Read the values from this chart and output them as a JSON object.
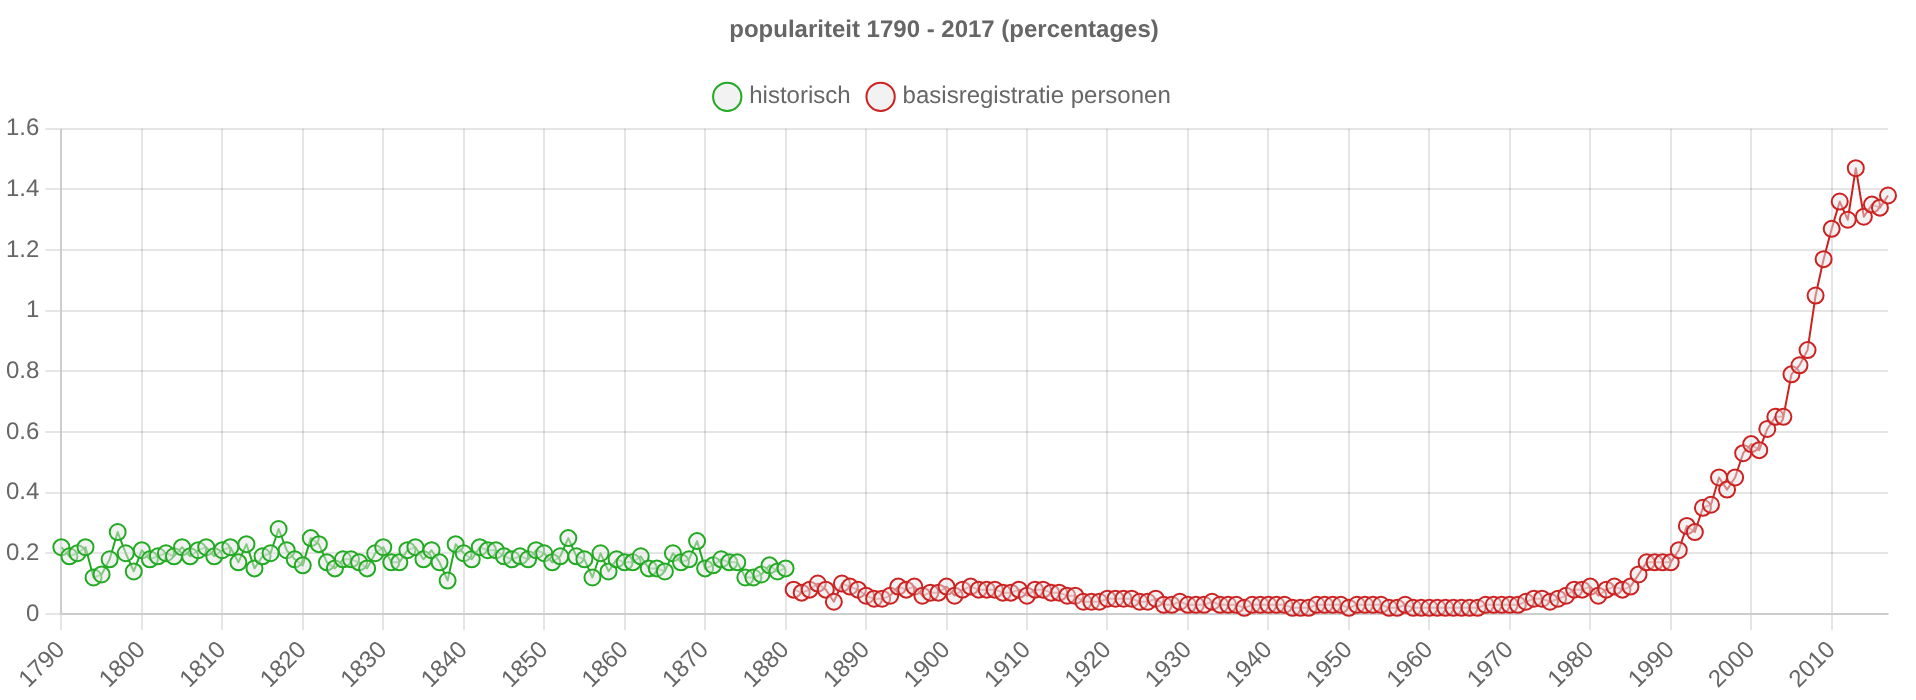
{
  "chart_data": {
    "type": "line",
    "title": "populariteit 1790 - 2017 (percentages)",
    "xlim": [
      1790,
      2017
    ],
    "xticks": [
      1790,
      1800,
      1810,
      1820,
      1830,
      1840,
      1850,
      1860,
      1870,
      1880,
      1890,
      1900,
      1910,
      1920,
      1930,
      1940,
      1950,
      1960,
      1970,
      1980,
      1990,
      2000,
      2010
    ],
    "ylim": [
      0,
      1.6
    ],
    "yticks": [
      0,
      0.2,
      0.4,
      0.6,
      0.8,
      1.0,
      1.2,
      1.4,
      1.6
    ],
    "grid": true,
    "legend": "top",
    "marker": "circle",
    "line_style": "solid",
    "series": [
      {
        "name": "historisch",
        "color": "#22aa22",
        "x": [
          1790,
          1791,
          1792,
          1793,
          1794,
          1795,
          1796,
          1797,
          1798,
          1799,
          1800,
          1801,
          1802,
          1803,
          1804,
          1805,
          1806,
          1807,
          1808,
          1809,
          1810,
          1811,
          1812,
          1813,
          1814,
          1815,
          1816,
          1817,
          1818,
          1819,
          1820,
          1821,
          1822,
          1823,
          1824,
          1825,
          1826,
          1827,
          1828,
          1829,
          1830,
          1831,
          1832,
          1833,
          1834,
          1835,
          1836,
          1837,
          1838,
          1839,
          1840,
          1841,
          1842,
          1843,
          1844,
          1845,
          1846,
          1847,
          1848,
          1849,
          1850,
          1851,
          1852,
          1853,
          1854,
          1855,
          1856,
          1857,
          1858,
          1859,
          1860,
          1861,
          1862,
          1863,
          1864,
          1865,
          1866,
          1867,
          1868,
          1869,
          1870,
          1871,
          1872,
          1873,
          1874,
          1875,
          1876,
          1877,
          1878,
          1879,
          1880
        ],
        "values": [
          0.22,
          0.19,
          0.2,
          0.22,
          0.12,
          0.13,
          0.18,
          0.27,
          0.2,
          0.14,
          0.21,
          0.18,
          0.19,
          0.2,
          0.19,
          0.22,
          0.19,
          0.21,
          0.22,
          0.19,
          0.21,
          0.22,
          0.17,
          0.23,
          0.15,
          0.19,
          0.2,
          0.28,
          0.21,
          0.18,
          0.16,
          0.25,
          0.23,
          0.17,
          0.15,
          0.18,
          0.18,
          0.17,
          0.15,
          0.2,
          0.22,
          0.17,
          0.17,
          0.21,
          0.22,
          0.18,
          0.21,
          0.17,
          0.11,
          0.23,
          0.2,
          0.18,
          0.22,
          0.21,
          0.21,
          0.19,
          0.18,
          0.19,
          0.18,
          0.21,
          0.2,
          0.17,
          0.19,
          0.25,
          0.19,
          0.18,
          0.12,
          0.2,
          0.14,
          0.18,
          0.17,
          0.17,
          0.19,
          0.15,
          0.15,
          0.14,
          0.2,
          0.17,
          0.18,
          0.24,
          0.15,
          0.16,
          0.18,
          0.17,
          0.17,
          0.12,
          0.12,
          0.13,
          0.16,
          0.14,
          0.15
        ]
      },
      {
        "name": "basisregistratie personen",
        "color": "#cc2222",
        "x": [
          1881,
          1882,
          1883,
          1884,
          1885,
          1886,
          1887,
          1888,
          1889,
          1890,
          1891,
          1892,
          1893,
          1894,
          1895,
          1896,
          1897,
          1898,
          1899,
          1900,
          1901,
          1902,
          1903,
          1904,
          1905,
          1906,
          1907,
          1908,
          1909,
          1910,
          1911,
          1912,
          1913,
          1914,
          1915,
          1916,
          1917,
          1918,
          1919,
          1920,
          1921,
          1922,
          1923,
          1924,
          1925,
          1926,
          1927,
          1928,
          1929,
          1930,
          1931,
          1932,
          1933,
          1934,
          1935,
          1936,
          1937,
          1938,
          1939,
          1940,
          1941,
          1942,
          1943,
          1944,
          1945,
          1946,
          1947,
          1948,
          1949,
          1950,
          1951,
          1952,
          1953,
          1954,
          1955,
          1956,
          1957,
          1958,
          1959,
          1960,
          1961,
          1962,
          1963,
          1964,
          1965,
          1966,
          1967,
          1968,
          1969,
          1970,
          1971,
          1972,
          1973,
          1974,
          1975,
          1976,
          1977,
          1978,
          1979,
          1980,
          1981,
          1982,
          1983,
          1984,
          1985,
          1986,
          1987,
          1988,
          1989,
          1990,
          1991,
          1992,
          1993,
          1994,
          1995,
          1996,
          1997,
          1998,
          1999,
          2000,
          2001,
          2002,
          2003,
          2004,
          2005,
          2006,
          2007,
          2008,
          2009,
          2010,
          2011,
          2012,
          2013,
          2014,
          2015,
          2016,
          2017
        ],
        "values": [
          0.08,
          0.07,
          0.08,
          0.1,
          0.08,
          0.04,
          0.1,
          0.09,
          0.08,
          0.06,
          0.05,
          0.05,
          0.06,
          0.09,
          0.08,
          0.09,
          0.06,
          0.07,
          0.07,
          0.09,
          0.06,
          0.08,
          0.09,
          0.08,
          0.08,
          0.08,
          0.07,
          0.07,
          0.08,
          0.06,
          0.08,
          0.08,
          0.07,
          0.07,
          0.06,
          0.06,
          0.04,
          0.04,
          0.04,
          0.05,
          0.05,
          0.05,
          0.05,
          0.04,
          0.04,
          0.05,
          0.03,
          0.03,
          0.04,
          0.03,
          0.03,
          0.03,
          0.04,
          0.03,
          0.03,
          0.03,
          0.02,
          0.03,
          0.03,
          0.03,
          0.03,
          0.03,
          0.02,
          0.02,
          0.02,
          0.03,
          0.03,
          0.03,
          0.03,
          0.02,
          0.03,
          0.03,
          0.03,
          0.03,
          0.02,
          0.02,
          0.03,
          0.02,
          0.02,
          0.02,
          0.02,
          0.02,
          0.02,
          0.02,
          0.02,
          0.02,
          0.03,
          0.03,
          0.03,
          0.03,
          0.03,
          0.04,
          0.05,
          0.05,
          0.04,
          0.05,
          0.06,
          0.08,
          0.08,
          0.09,
          0.06,
          0.08,
          0.09,
          0.08,
          0.09,
          0.13,
          0.17,
          0.17,
          0.17,
          0.17,
          0.21,
          0.29,
          0.27,
          0.35,
          0.36,
          0.45,
          0.41,
          0.45,
          0.53,
          0.56,
          0.54,
          0.61,
          0.65,
          0.65,
          0.79,
          0.82,
          0.87,
          1.05,
          1.17,
          1.27,
          1.36,
          1.3,
          1.47,
          1.31,
          1.35,
          1.34,
          1.38
        ]
      }
    ]
  }
}
